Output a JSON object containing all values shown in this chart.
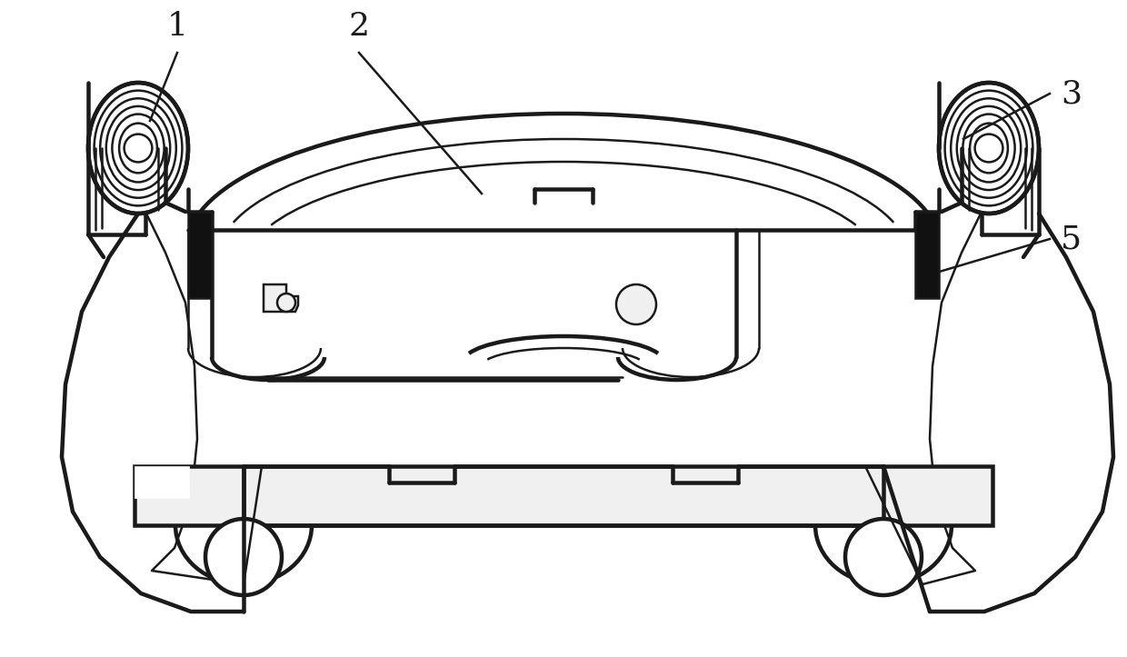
{
  "background_color": "#ffffff",
  "line_color": "#1a1a1a",
  "dark_fill": "#111111",
  "light_fill": "#f0f0f0",
  "mid_fill": "#d8d8d8",
  "label_fontsize": 26,
  "line_width": 1.8,
  "fig_width": 12.4,
  "fig_height": 7.23,
  "dpi": 100
}
